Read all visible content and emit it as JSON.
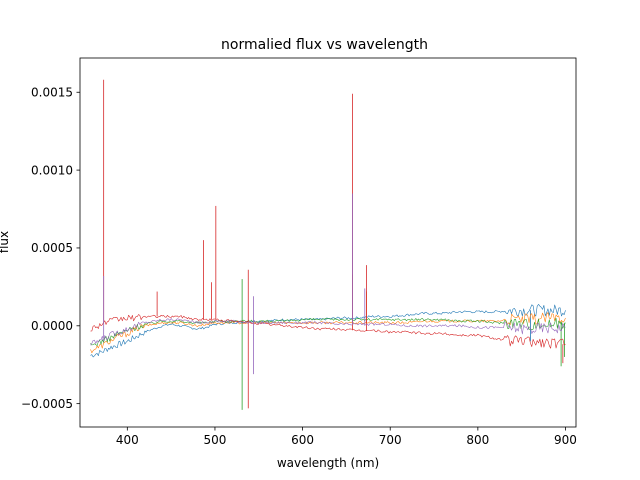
{
  "chart_data": {
    "type": "line",
    "title": "normalied flux vs wavelength",
    "xlabel": "wavelength (nm)",
    "ylabel": "flux",
    "xlim": [
      346,
      912
    ],
    "ylim": [
      -0.00065,
      0.00172
    ],
    "xticks": [
      400,
      500,
      600,
      700,
      800,
      900
    ],
    "yticks": [
      -0.0005,
      0.0,
      0.0005,
      0.001,
      0.0015
    ],
    "ytick_labels": [
      "−0.0005",
      "0.0000",
      "0.0005",
      "0.0010",
      "0.0015"
    ],
    "grid": false,
    "legend": "none",
    "series": [
      {
        "color": "#1f77b4",
        "x": [
          358,
          370,
          380,
          390,
          400,
          410,
          420,
          430,
          440,
          450,
          460,
          470,
          480,
          490,
          500,
          520,
          540,
          560,
          580,
          600,
          620,
          640,
          660,
          680,
          700,
          720,
          740,
          760,
          780,
          800,
          820,
          840,
          860,
          880,
          900
        ],
        "y": [
          -0.00019,
          -0.00017,
          -0.00014,
          -0.00012,
          -0.0001,
          -7e-05,
          -4e-05,
          -2e-05,
          0.0,
          1e-05,
          0.0,
          -1e-05,
          -2e-05,
          -1e-05,
          1e-05,
          2e-05,
          3e-05,
          3e-05,
          4e-05,
          4e-05,
          4e-05,
          5e-05,
          5e-05,
          6e-05,
          6e-05,
          7e-05,
          8e-05,
          8e-05,
          9e-05,
          9e-05,
          9e-05,
          0.0001,
          0.0001,
          0.0001,
          0.0001
        ],
        "spikes": [
          [
            860,
            -0.0001
          ]
        ]
      },
      {
        "color": "#ff7f0e",
        "x": [
          358,
          370,
          380,
          390,
          400,
          410,
          420,
          430,
          440,
          450,
          460,
          470,
          480,
          490,
          500,
          520,
          540,
          560,
          580,
          600,
          620,
          640,
          660,
          680,
          700,
          720,
          740,
          760,
          780,
          800,
          820,
          840,
          860,
          880,
          900
        ],
        "y": [
          -0.00016,
          -0.00013,
          -0.0001,
          -7e-05,
          -5e-05,
          -2e-05,
          0.0,
          1e-05,
          2e-05,
          2e-05,
          2e-05,
          1e-05,
          0.0,
          1e-05,
          2e-05,
          2e-05,
          2e-05,
          2e-05,
          2e-05,
          2e-05,
          2e-05,
          2e-05,
          2e-05,
          2e-05,
          2e-05,
          2e-05,
          3e-05,
          3e-05,
          3e-05,
          3e-05,
          3e-05,
          4e-05,
          4e-05,
          5e-05,
          5e-05
        ],
        "spikes": [
          [
            657,
            0.00033
          ],
          [
            673,
            0.00022
          ]
        ]
      },
      {
        "color": "#2ca02c",
        "x": [
          358,
          370,
          380,
          390,
          400,
          410,
          420,
          430,
          440,
          450,
          460,
          470,
          480,
          490,
          500,
          520,
          540,
          560,
          580,
          600,
          620,
          640,
          660,
          680,
          700,
          720,
          740,
          760,
          780,
          800,
          820,
          840,
          860,
          880,
          900
        ],
        "y": [
          -0.00013,
          -0.0001,
          -8e-05,
          -5e-05,
          -3e-05,
          -1e-05,
          1e-05,
          2e-05,
          3e-05,
          3e-05,
          3e-05,
          2e-05,
          2e-05,
          2e-05,
          3e-05,
          3e-05,
          3e-05,
          3e-05,
          3e-05,
          4e-05,
          4e-05,
          4e-05,
          4e-05,
          4e-05,
          4e-05,
          4e-05,
          4e-05,
          4e-05,
          3e-05,
          3e-05,
          2e-05,
          2e-05,
          1e-05,
          1e-05,
          2e-05
        ],
        "spikes": [
          [
            531,
            0.0003
          ],
          [
            531,
            -0.00054
          ],
          [
            895,
            -0.00026
          ],
          [
            899,
            -0.0002
          ]
        ]
      },
      {
        "color": "#d62728",
        "x": [
          358,
          370,
          380,
          390,
          400,
          410,
          420,
          430,
          440,
          450,
          460,
          470,
          480,
          490,
          500,
          520,
          540,
          560,
          580,
          600,
          620,
          640,
          660,
          680,
          700,
          720,
          740,
          760,
          780,
          800,
          820,
          840,
          860,
          880,
          900
        ],
        "y": [
          -2e-05,
          1e-05,
          3e-05,
          4e-05,
          5e-05,
          5e-05,
          6e-05,
          6e-05,
          6e-05,
          6e-05,
          6e-05,
          5e-05,
          4e-05,
          4e-05,
          4e-05,
          3e-05,
          2e-05,
          1e-05,
          0.0,
          -1e-05,
          -2e-05,
          -2e-05,
          -3e-05,
          -3e-05,
          -4e-05,
          -4e-05,
          -5e-05,
          -5e-05,
          -6e-05,
          -6e-05,
          -8e-05,
          -0.0001,
          -0.0001,
          -0.00011,
          -0.00012
        ],
        "spikes": [
          [
            373,
            0.00158
          ],
          [
            434,
            0.00022
          ],
          [
            487,
            0.00055
          ],
          [
            496,
            0.00028
          ],
          [
            501,
            0.00077
          ],
          [
            538,
            0.00036
          ],
          [
            538,
            -0.00053
          ],
          [
            657,
            0.00149
          ],
          [
            673,
            0.00039
          ],
          [
            897,
            -0.00024
          ]
        ]
      },
      {
        "color": "#9467bd",
        "x": [
          358,
          370,
          380,
          390,
          400,
          410,
          420,
          430,
          440,
          450,
          460,
          470,
          480,
          490,
          500,
          520,
          540,
          560,
          580,
          600,
          620,
          640,
          660,
          680,
          700,
          720,
          740,
          760,
          780,
          800,
          820,
          840,
          860,
          880,
          900
        ],
        "y": [
          -0.00012,
          -9e-05,
          -6e-05,
          -4e-05,
          -2e-05,
          0.0,
          2e-05,
          3e-05,
          4e-05,
          4e-05,
          4e-05,
          3e-05,
          2e-05,
          2e-05,
          3e-05,
          3e-05,
          2e-05,
          2e-05,
          2e-05,
          2e-05,
          2e-05,
          1e-05,
          1e-05,
          1e-05,
          1e-05,
          0.0,
          0.0,
          0.0,
          0.0,
          -1e-05,
          -1e-05,
          -1e-05,
          -2e-05,
          -1e-05,
          -1e-05
        ],
        "spikes": [
          [
            373,
            0.00032
          ],
          [
            544,
            0.00019
          ],
          [
            544,
            -0.00031
          ],
          [
            657,
            0.00085
          ],
          [
            671,
            0.00024
          ]
        ]
      }
    ]
  }
}
